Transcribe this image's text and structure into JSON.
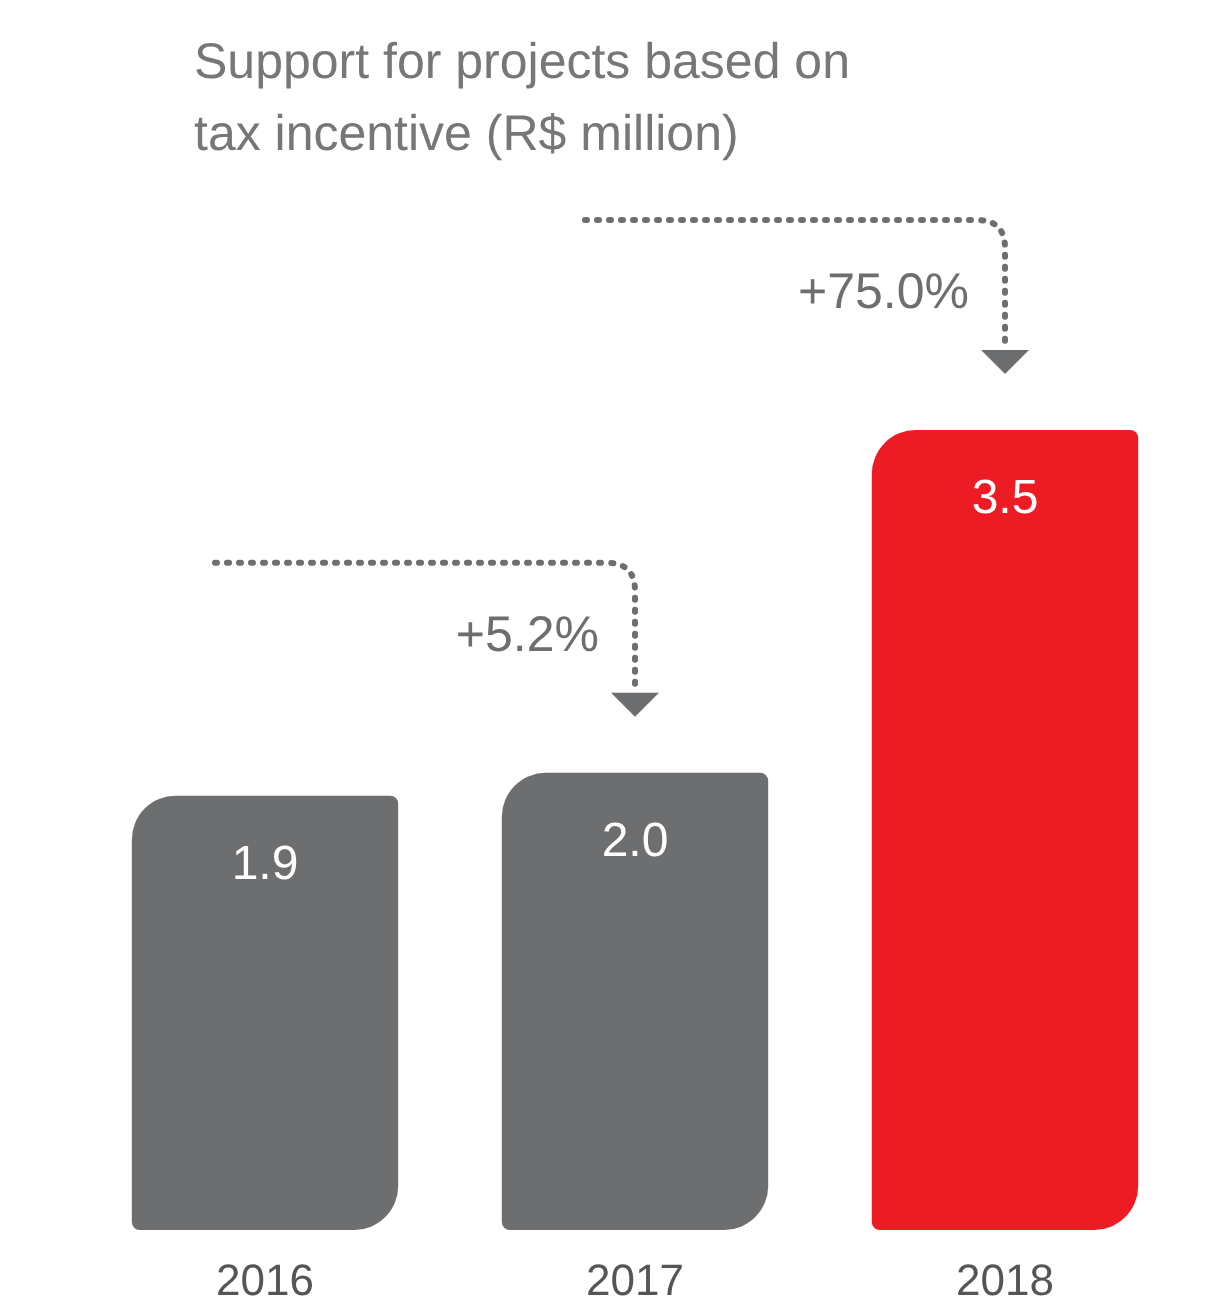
{
  "chart_data": {
    "type": "bar",
    "title": "Support for projects based on tax incentive (R$ million)",
    "categories": [
      "2016",
      "2017",
      "2018"
    ],
    "values": [
      1.9,
      2.0,
      3.5
    ],
    "value_labels": [
      "1.9",
      "2.0",
      "3.5"
    ],
    "colors": [
      "#6d6e70",
      "#6d6e70",
      "#ed1c24"
    ],
    "annotations": [
      "+5.2%",
      "+75.0%"
    ]
  }
}
